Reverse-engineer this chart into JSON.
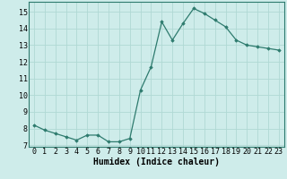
{
  "x": [
    0,
    1,
    2,
    3,
    4,
    5,
    6,
    7,
    8,
    9,
    10,
    11,
    12,
    13,
    14,
    15,
    16,
    17,
    18,
    19,
    20,
    21,
    22,
    23
  ],
  "y": [
    8.2,
    7.9,
    7.7,
    7.5,
    7.3,
    7.6,
    7.6,
    7.2,
    7.2,
    7.4,
    10.3,
    11.7,
    14.4,
    13.3,
    14.3,
    15.2,
    14.9,
    14.5,
    14.1,
    13.3,
    13.0,
    12.9,
    12.8,
    12.7
  ],
  "title": "",
  "xlabel": "Humidex (Indice chaleur)",
  "ylabel": "",
  "xlim": [
    -0.5,
    23.5
  ],
  "ylim": [
    6.9,
    15.6
  ],
  "yticks": [
    7,
    8,
    9,
    10,
    11,
    12,
    13,
    14,
    15
  ],
  "xticks": [
    0,
    1,
    2,
    3,
    4,
    5,
    6,
    7,
    8,
    9,
    10,
    11,
    12,
    13,
    14,
    15,
    16,
    17,
    18,
    19,
    20,
    21,
    22,
    23
  ],
  "line_color": "#2e7b6e",
  "marker": "D",
  "marker_size": 1.8,
  "bg_color": "#ceecea",
  "grid_color": "#b0d8d4",
  "xlabel_fontsize": 7,
  "tick_fontsize": 6,
  "linewidth": 0.9
}
